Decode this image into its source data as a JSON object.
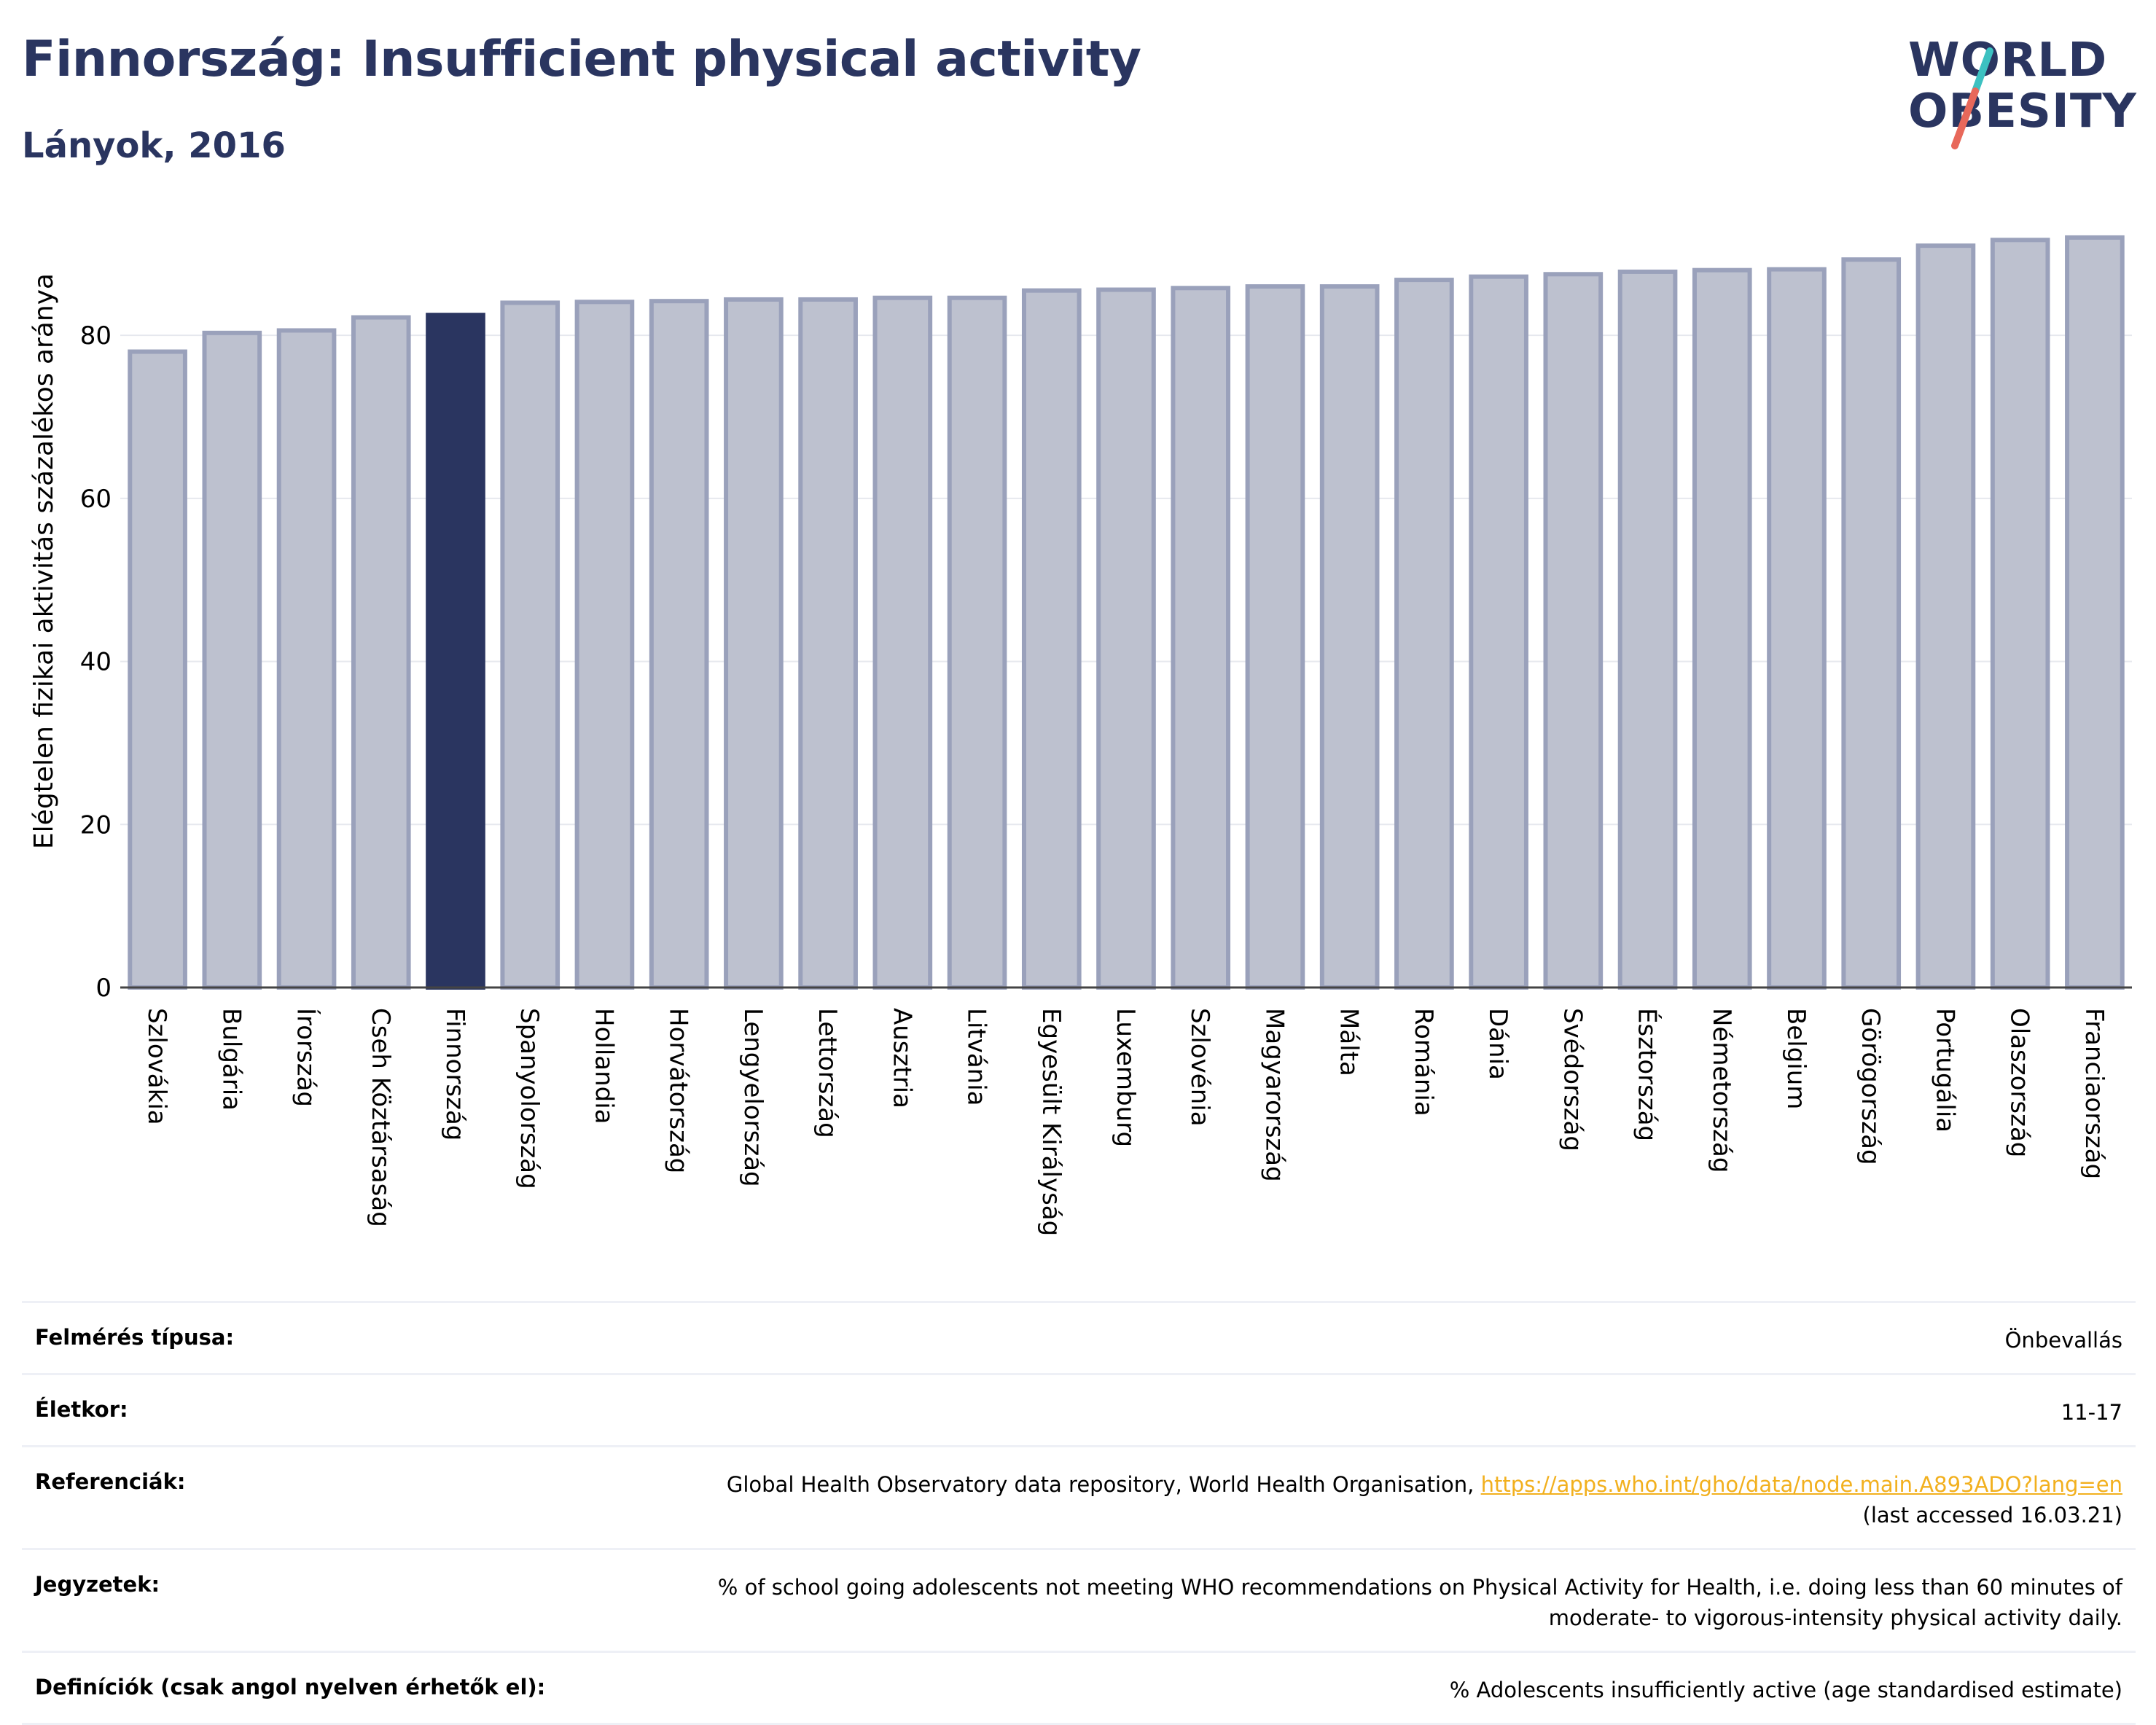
{
  "header": {
    "title": "Finnország: Insufficient physical activity",
    "subtitle": "Lányok, 2016",
    "logo_line1": "WORLD",
    "logo_line2": "OBESITY"
  },
  "colors": {
    "bar": "#bdc1cf",
    "bar_edge": "#9aa1bb",
    "highlight": "#2a3560",
    "title": "#2a3560",
    "link": "#f2b01e",
    "logo_accent_teal": "#3cc1c1",
    "logo_accent_coral": "#e8685a"
  },
  "chart_data": {
    "type": "bar",
    "ylabel": "Elégtelen fizikai aktivitás százalékos aránya",
    "xlabel": "",
    "ylim": [
      0,
      97
    ],
    "yticks": [
      0,
      20,
      40,
      60,
      80
    ],
    "grid": true,
    "highlight_category": "Finnország",
    "categories": [
      "Szlovákia",
      "Bulgária",
      "Írország",
      "Cseh Köztársaság",
      "Finnország",
      "Spanyolország",
      "Hollandia",
      "Horvátország",
      "Lengyelország",
      "Lettország",
      "Ausztria",
      "Litvánia",
      "Egyesült Királyság",
      "Luxemburg",
      "Szlovénia",
      "Magyarország",
      "Málta",
      "Románia",
      "Dánia",
      "Svédország",
      "Észtország",
      "Németország",
      "Belgium",
      "Görögország",
      "Portugália",
      "Olaszország",
      "Franciaország"
    ],
    "values": [
      78.0,
      80.3,
      80.6,
      82.2,
      82.5,
      84.0,
      84.1,
      84.2,
      84.4,
      84.4,
      84.6,
      84.6,
      85.5,
      85.6,
      85.8,
      86.0,
      86.0,
      86.8,
      87.2,
      87.5,
      87.8,
      88.0,
      88.1,
      89.3,
      91.0,
      91.7,
      92.0
    ]
  },
  "info": [
    {
      "label": "Felmérés típusa:",
      "value": "Önbevallás"
    },
    {
      "label": "Életkor:",
      "value": "11-17"
    },
    {
      "label": "Referenciák:",
      "value": "Global Health Observatory data repository, World Health Organisation, ",
      "link": "https://apps.who.int/gho/data/node.main.A893ADO?lang=en",
      "value2": "(last accessed 16.03.21)"
    },
    {
      "label": "Jegyzetek:",
      "value": "% of school going adolescents not meeting WHO recommendations on Physical Activity for Health, i.e. doing less than 60 minutes of",
      "value2": "moderate- to vigorous-intensity physical activity daily."
    },
    {
      "label": "Definíciók (csak angol nyelven érhetők el):",
      "value": "% Adolescents insufficiently active (age standardised estimate)"
    }
  ]
}
